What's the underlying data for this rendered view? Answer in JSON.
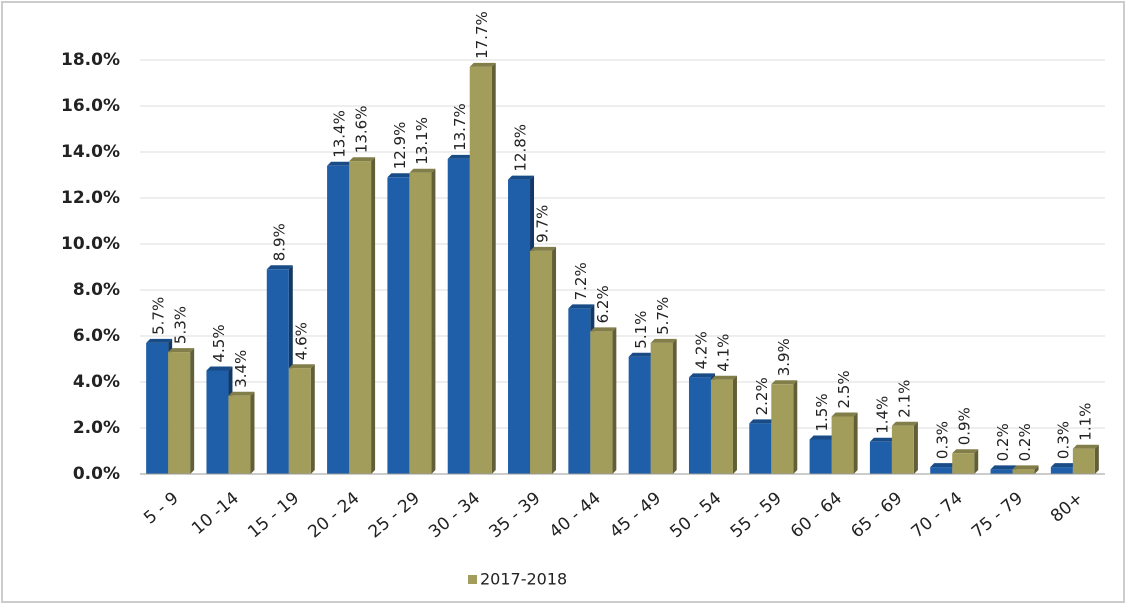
{
  "chart_data": {
    "type": "bar",
    "categories": [
      "5 - 9",
      "10 -14",
      "15 - 19",
      "20 - 24",
      "25 - 29",
      "30 - 34",
      "35 - 39",
      "40 - 44",
      "45 - 49",
      "50 - 54",
      "55 - 59",
      "60 - 64",
      "65 - 69",
      "70 - 74",
      "75 - 79",
      "80+"
    ],
    "series": [
      {
        "color": "#1f5ea8",
        "values": [
          5.7,
          4.5,
          8.9,
          13.4,
          12.9,
          13.7,
          12.8,
          7.2,
          5.1,
          4.2,
          2.2,
          1.5,
          1.4,
          0.3,
          0.2,
          0.3
        ],
        "value_labels": [
          "5.7%",
          "4.5%",
          "8.9%",
          "13.4%",
          "12.9%",
          "13.7%",
          "12.8%",
          "7.2%",
          "5.1%",
          "4.2%",
          "2.2%",
          "1.5%",
          "1.4%",
          "0.3%",
          "0.2%",
          "0.3%"
        ]
      },
      {
        "name": "2017-2018",
        "color": "#a39d5c",
        "values": [
          5.3,
          3.4,
          4.6,
          13.6,
          13.1,
          17.7,
          9.7,
          6.2,
          5.7,
          4.1,
          3.9,
          2.5,
          2.1,
          0.9,
          0.2,
          1.1
        ],
        "value_labels": [
          "5.3%",
          "3.4%",
          "4.6%",
          "13.6%",
          "13.1%",
          "17.7%",
          "9.7%",
          "6.2%",
          "5.7%",
          "4.1%",
          "3.9%",
          "2.5%",
          "2.1%",
          "0.9%",
          "0.2%",
          "1.1%"
        ]
      }
    ],
    "ylim": [
      0,
      18
    ],
    "yticks": [
      {
        "value": 0,
        "label": "0.0%"
      },
      {
        "value": 2,
        "label": "2.0%"
      },
      {
        "value": 4,
        "label": "4.0%"
      },
      {
        "value": 6,
        "label": "6.0%"
      },
      {
        "value": 8,
        "label": "8.0%"
      },
      {
        "value": 10,
        "label": "10.0%"
      },
      {
        "value": 12,
        "label": "12.0%"
      },
      {
        "value": 14,
        "label": "14.0%"
      },
      {
        "value": 16,
        "label": "16.0%"
      },
      {
        "value": 18,
        "label": "18.0%"
      }
    ],
    "grid": true,
    "legend": "bottom"
  }
}
